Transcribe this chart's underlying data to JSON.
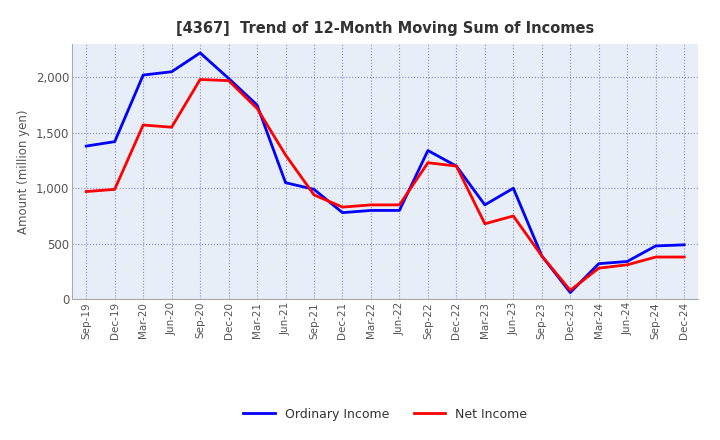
{
  "title": "[4367]  Trend of 12-Month Moving Sum of Incomes",
  "ylabel": "Amount (million yen)",
  "x_labels": [
    "Sep-19",
    "Dec-19",
    "Mar-20",
    "Jun-20",
    "Sep-20",
    "Dec-20",
    "Mar-21",
    "Jun-21",
    "Sep-21",
    "Dec-21",
    "Mar-22",
    "Jun-22",
    "Sep-22",
    "Dec-22",
    "Mar-23",
    "Jun-23",
    "Sep-23",
    "Dec-23",
    "Mar-24",
    "Jun-24",
    "Sep-24",
    "Dec-24"
  ],
  "ordinary_income": [
    1380,
    1420,
    2020,
    2050,
    2220,
    1990,
    1750,
    1050,
    990,
    780,
    800,
    800,
    1340,
    1200,
    850,
    1000,
    390,
    60,
    320,
    340,
    480,
    490
  ],
  "net_income": [
    970,
    990,
    1570,
    1550,
    1980,
    1970,
    1720,
    1300,
    940,
    830,
    850,
    850,
    1230,
    1200,
    680,
    750,
    390,
    80,
    280,
    310,
    380,
    380
  ],
  "ordinary_color": "#0000ff",
  "net_color": "#ff0000",
  "ylim": [
    0,
    2300
  ],
  "yticks": [
    0,
    500,
    1000,
    1500,
    2000
  ],
  "background_color": "#ffffff",
  "plot_bg_color": "#e8eef8",
  "grid_color": "#7777aa",
  "title_color": "#333333",
  "tick_color": "#555555",
  "legend_labels": [
    "Ordinary Income",
    "Net Income"
  ]
}
